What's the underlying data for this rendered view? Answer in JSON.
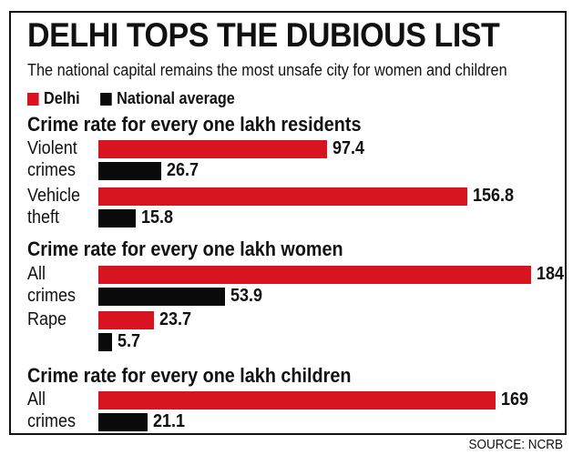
{
  "title": "DELHI TOPS THE DUBIOUS LIST",
  "subtitle": "The national capital remains the most unsafe city for women and children",
  "source": "SOURCE: NCRB",
  "colors": {
    "delhi": "#d7141f",
    "national": "#0a0a0a"
  },
  "chart_data": {
    "type": "bar",
    "orientation": "horizontal",
    "series_names": [
      "Delhi",
      "National average"
    ],
    "sections": [
      {
        "heading": "Crime rate for every one lakh residents",
        "groups": [
          {
            "label": [
              "Violent",
              "crimes"
            ],
            "values": [
              97.4,
              26.7
            ],
            "value_labels": [
              "97.4",
              "26.7"
            ]
          },
          {
            "label": [
              "Vehicle",
              "theft"
            ],
            "values": [
              156.8,
              15.8
            ],
            "value_labels": [
              "156.8",
              "15.8"
            ]
          }
        ]
      },
      {
        "heading": "Crime rate for every one lakh women",
        "groups": [
          {
            "label": [
              "All",
              "crimes"
            ],
            "values": [
              184,
              53.9
            ],
            "value_labels": [
              "184",
              "53.9"
            ]
          },
          {
            "label": [
              "Rape"
            ],
            "values": [
              23.7,
              5.7
            ],
            "value_labels": [
              "23.7",
              "5.7"
            ]
          }
        ]
      },
      {
        "heading": "Crime rate for every one lakh children",
        "groups": [
          {
            "label": [
              "All",
              "crimes"
            ],
            "values": [
              169,
              21.1
            ],
            "value_labels": [
              "169",
              "21.1"
            ]
          }
        ]
      }
    ]
  }
}
